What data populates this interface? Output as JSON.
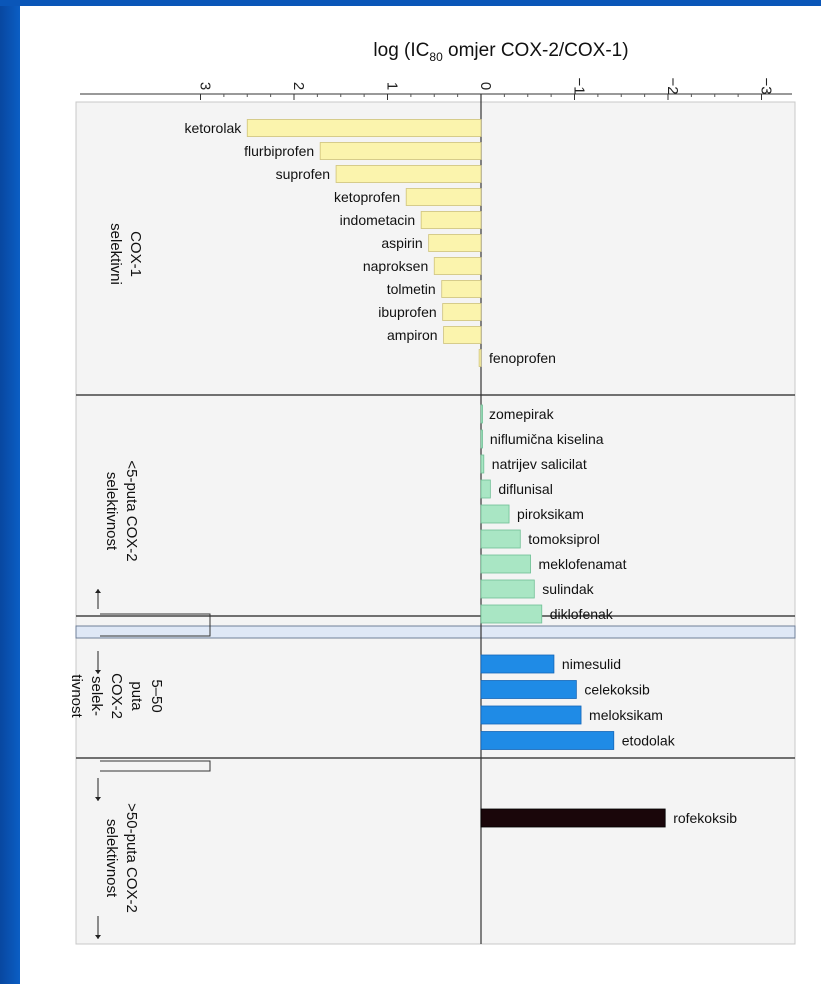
{
  "colors": {
    "background_blue": "#0a56b8",
    "panel": "#f4f4f4",
    "cox1_bar": "#fbf4ad",
    "cox2_weak_bar": "#a9e6c4",
    "cox2_mid_bar": "#1f8be6",
    "cox2_strong_bar": "#1a060a",
    "band": "#dfe8f6"
  },
  "chart_data": {
    "type": "bar",
    "orientation": "horizontal",
    "title": "log (IC",
    "title_subscript": "80",
    "title_suffix": " omjer COX-2/COX-1)",
    "axis": {
      "ticks": [
        3,
        2,
        1,
        0,
        -1,
        -2,
        -3
      ],
      "tick_labels": [
        "3",
        "2",
        "1",
        "0",
        "−1",
        "−2",
        "−3"
      ],
      "direction": "reversed",
      "range": [
        3.25,
        -3.15
      ]
    },
    "groups": [
      {
        "label_lines": [
          "COX-1",
          "selektivni"
        ],
        "color": "#fbf4ad",
        "items": [
          {
            "name": "ketorolak",
            "value": 2.5
          },
          {
            "name": "flurbiprofen",
            "value": 1.72
          },
          {
            "name": "suprofen",
            "value": 1.55
          },
          {
            "name": "ketoprofen",
            "value": 0.8
          },
          {
            "name": "indometacin",
            "value": 0.64
          },
          {
            "name": "aspirin",
            "value": 0.56
          },
          {
            "name": "naproksen",
            "value": 0.5
          },
          {
            "name": "tolmetin",
            "value": 0.42
          },
          {
            "name": "ibuprofen",
            "value": 0.41
          },
          {
            "name": "ampiron",
            "value": 0.4
          },
          {
            "name": "fenoprofen",
            "value": 0.02
          }
        ]
      },
      {
        "label_lines": [
          "<5-puta COX-2",
          "selektivnost"
        ],
        "color": "#a9e6c4",
        "items": [
          {
            "name": "zomepirak",
            "value": 0.0
          },
          {
            "name": "niflumična kiselina",
            "value": -0.01
          },
          {
            "name": "natrijev salicilat",
            "value": -0.03
          },
          {
            "name": "diflunisal",
            "value": -0.1
          },
          {
            "name": "piroksikam",
            "value": -0.3
          },
          {
            "name": "tomoksiprol",
            "value": -0.42
          },
          {
            "name": "meklofenamat",
            "value": -0.53
          },
          {
            "name": "sulindak",
            "value": -0.57
          },
          {
            "name": "diklofenak",
            "value": -0.65
          }
        ]
      },
      {
        "label_lines": [
          "5–50",
          "puta",
          "COX-2",
          "selek-",
          "tivnost"
        ],
        "color": "#1f8be6",
        "items": [
          {
            "name": "nimesulid",
            "value": -0.78
          },
          {
            "name": "celekoksib",
            "value": -1.02
          },
          {
            "name": "meloksikam",
            "value": -1.07
          },
          {
            "name": "etodolak",
            "value": -1.42
          }
        ]
      },
      {
        "label_lines": [
          ">50-puta COX-2",
          "selektivnost"
        ],
        "color": "#1a060a",
        "items": [
          {
            "name": "rofekoksib",
            "value": -1.97
          }
        ]
      }
    ]
  }
}
